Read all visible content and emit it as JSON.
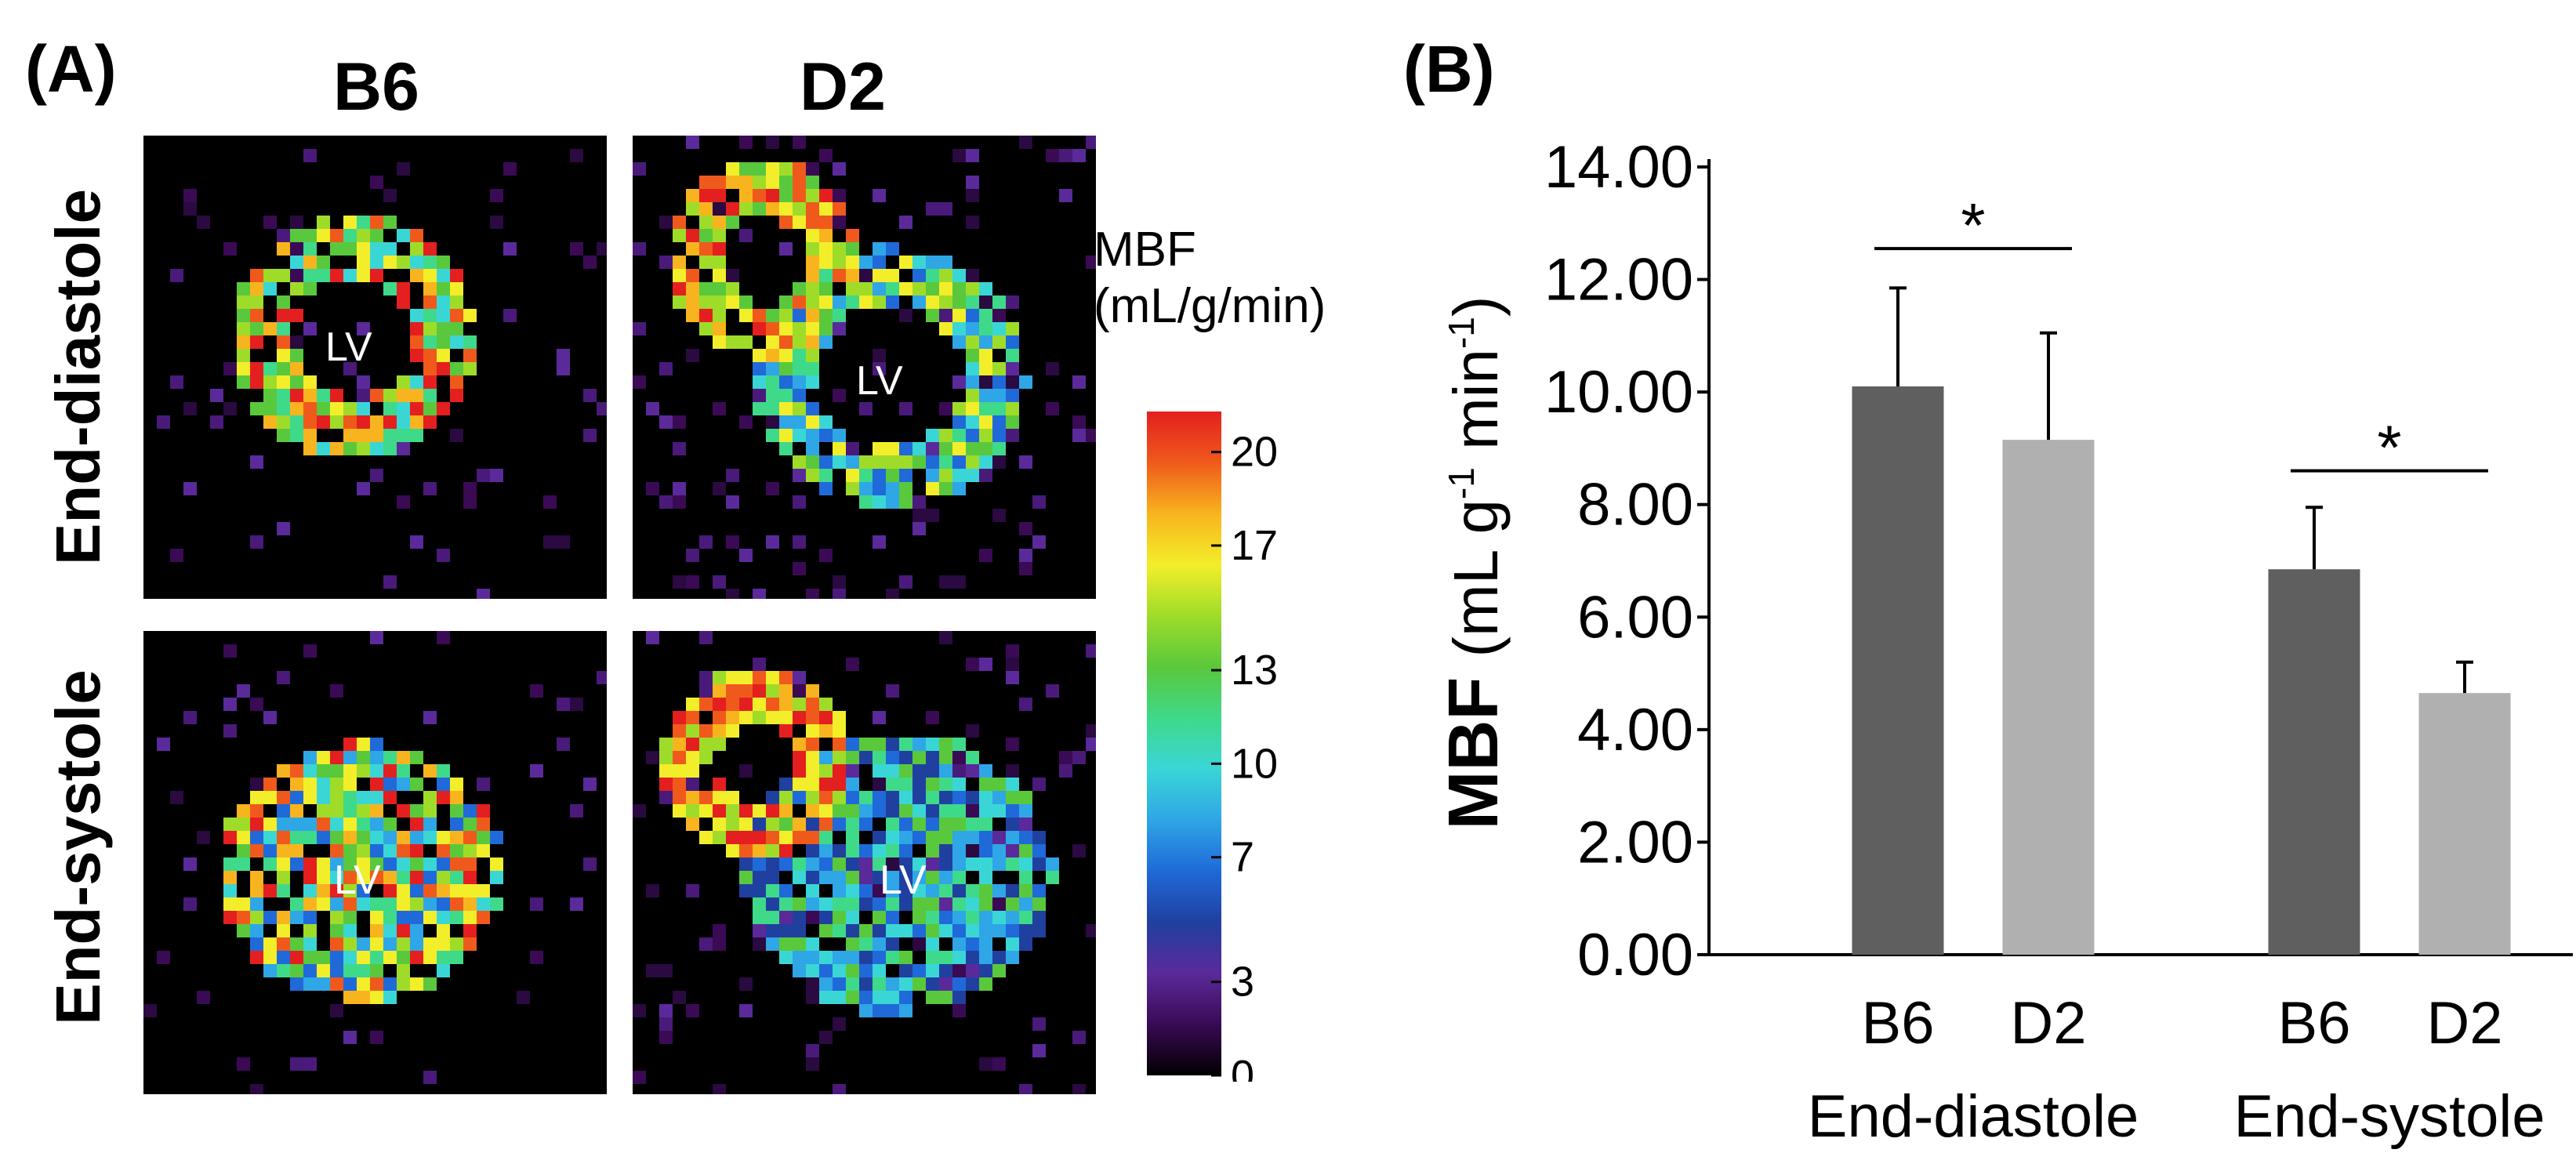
{
  "panel_a": {
    "label": "(A)",
    "columns": [
      "B6",
      "D2"
    ],
    "rows": [
      "End-diastole",
      "End-systole"
    ],
    "lv_label": "LV",
    "colorbar": {
      "title_line1": "MBF",
      "title_line2": "(mL/g/min)",
      "ticks": [
        "20",
        "17",
        "13",
        "10",
        "7",
        "3",
        "0"
      ],
      "tick_values": [
        20,
        17,
        13,
        10,
        7,
        3,
        0
      ],
      "range": [
        0,
        21.3
      ],
      "colors": [
        "#000000",
        "#3a0a55",
        "#5a2a9a",
        "#2040a0",
        "#1f6ad8",
        "#2fa6e6",
        "#3ad6d6",
        "#3fd98a",
        "#5ac83c",
        "#9fdc2a",
        "#f3ee2a",
        "#f8b41e",
        "#ef5a1c",
        "#e41f1f"
      ]
    }
  },
  "panel_b": {
    "label": "(B)",
    "chart_data": {
      "type": "bar",
      "ylabel": "MBF",
      "ylabel_units": "(mL g",
      "ylabel_sup1": "-1",
      "ylabel_mid": " min",
      "ylabel_sup2": "-1",
      "ylabel_end": ")",
      "ylim": [
        0,
        14
      ],
      "yticks": [
        "0.00",
        "2.00",
        "4.00",
        "6.00",
        "8.00",
        "10.00",
        "12.00",
        "14.00"
      ],
      "ytick_values": [
        0,
        2,
        4,
        6,
        8,
        10,
        12,
        14
      ],
      "groups": [
        "End-diastole",
        "End-systole"
      ],
      "categories": [
        "B6",
        "D2",
        "B6",
        "D2"
      ],
      "values": [
        10.1,
        9.15,
        6.85,
        4.65
      ],
      "errors": [
        1.75,
        1.9,
        1.1,
        0.55
      ],
      "colors": [
        "#5f5f5f",
        "#b0b0b0",
        "#5f5f5f",
        "#b0b0b0"
      ],
      "significance": [
        {
          "label": "*",
          "between": [
            0,
            1
          ],
          "level": 12.55
        },
        {
          "label": "*",
          "between": [
            2,
            3
          ],
          "level": 8.6
        }
      ]
    }
  }
}
